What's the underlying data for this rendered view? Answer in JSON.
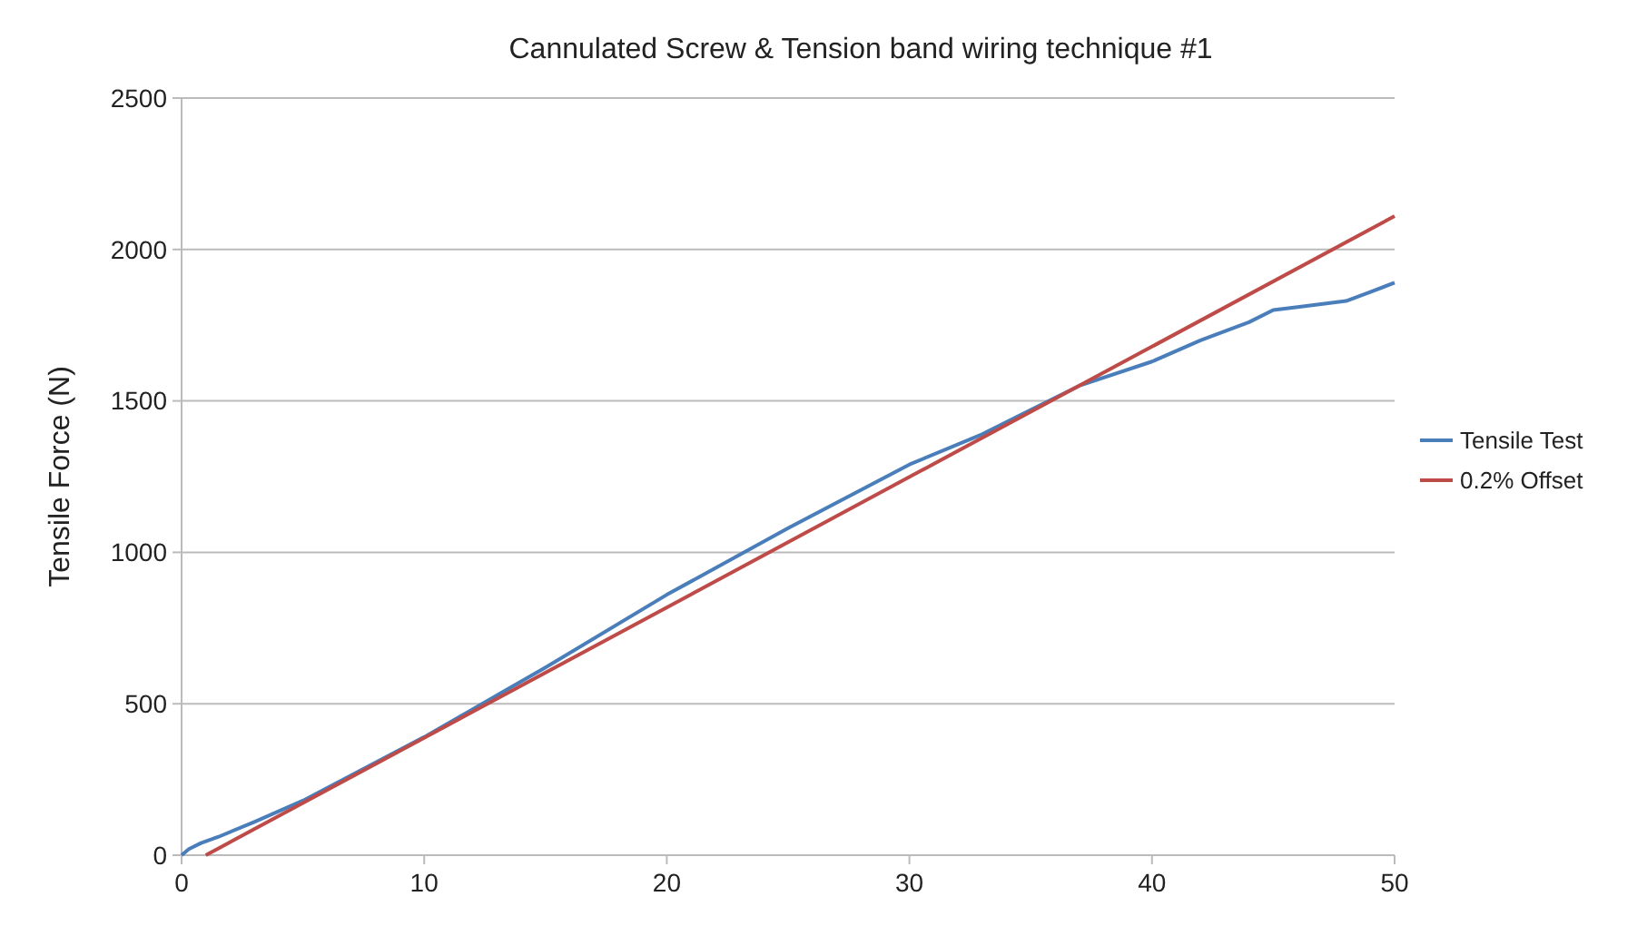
{
  "chart_data": {
    "type": "line",
    "title": "Cannulated Screw & Tension band wiring technique #1",
    "ylabel": "Tensile Force (N)",
    "xlim": [
      0,
      50
    ],
    "xticks": [
      0,
      10,
      20,
      30,
      40,
      50
    ],
    "ylim": [
      0,
      2500
    ],
    "yticks": [
      0,
      500,
      1000,
      1500,
      2000,
      2500
    ],
    "grid": "y",
    "legend": "right",
    "marker": "none",
    "line_style": "solid",
    "series": [
      {
        "name": "Tensile Test",
        "color": "#4a7ebb",
        "x": [
          0,
          0.3,
          0.8,
          1.5,
          3,
          5,
          10,
          15,
          20,
          25,
          30,
          33,
          35,
          37,
          40,
          42,
          44,
          45,
          46,
          48,
          49,
          50
        ],
        "values": [
          0,
          20,
          40,
          60,
          110,
          180,
          390,
          620,
          860,
          1080,
          1290,
          1390,
          1470,
          1550,
          1630,
          1700,
          1760,
          1800,
          1810,
          1830,
          1860,
          1890
        ]
      },
      {
        "name": "0.2% Offset",
        "color": "#be4b48",
        "x": [
          1,
          50
        ],
        "values": [
          0,
          2110
        ]
      }
    ]
  }
}
